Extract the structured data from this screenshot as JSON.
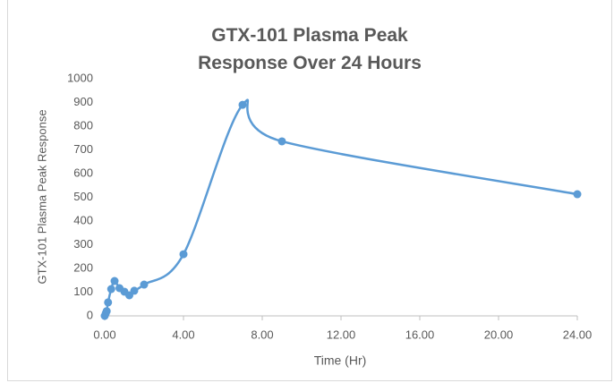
{
  "chart_data": {
    "type": "line",
    "smooth": true,
    "title": "GTX-101 Plasma Peak Response Over 24 Hours",
    "xlabel": "Time  (Hr)",
    "ylabel": "GTX-101 Plasma Peak Response",
    "x": [
      0,
      0.05,
      0.1,
      0.17,
      0.33,
      0.5,
      0.75,
      1,
      1.25,
      1.5,
      2,
      4,
      7,
      9,
      24
    ],
    "series": [
      {
        "name": "GTX-101",
        "color": "#5b9bd5",
        "values": [
          0,
          10,
          20,
          57,
          113,
          147,
          117,
          102,
          87,
          106,
          132,
          260,
          890,
          736,
          513
        ]
      }
    ],
    "xlim": [
      0,
      24
    ],
    "xticks": [
      {
        "value": 0,
        "label": "0.00"
      },
      {
        "value": 4,
        "label": "4.00"
      },
      {
        "value": 8,
        "label": "8.00"
      },
      {
        "value": 12,
        "label": "12.00"
      },
      {
        "value": 16,
        "label": "16.00"
      },
      {
        "value": 20,
        "label": "20.00"
      },
      {
        "value": 24,
        "label": "24.00"
      }
    ],
    "ylim": [
      0,
      1000
    ],
    "yticks": [
      0,
      100,
      200,
      300,
      400,
      500,
      600,
      700,
      800,
      900,
      1000
    ],
    "grid": false
  }
}
